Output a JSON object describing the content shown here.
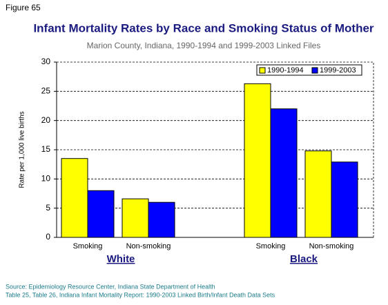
{
  "figure_label": "Figure 65",
  "chart_data": {
    "type": "bar",
    "title": "Infant Mortality Rates by Race and Smoking Status of Mother",
    "subtitle": "Marion County, Indiana, 1990-1994 and 1999-2003 Linked Files",
    "y_label": "Rate per 1,000 live births",
    "categories": [
      "Smoking",
      "Non-smoking",
      "Smoking",
      "Non-smoking"
    ],
    "groups": [
      "White",
      "Black"
    ],
    "series": [
      {
        "name": "1990-1994",
        "color": "#ffff00",
        "values": [
          13.5,
          6.6,
          26.3,
          14.8
        ]
      },
      {
        "name": "1999-2003",
        "color": "#0000ff",
        "values": [
          8.0,
          6.0,
          22.0,
          12.9
        ]
      }
    ],
    "ylim": [
      0,
      30
    ],
    "yticks": [
      0,
      5,
      10,
      15,
      20,
      25,
      30
    ],
    "grid": true,
    "legend": "top-right"
  },
  "source": [
    "Source: Epidemiology Resource Center, Indiana State Department of Health",
    "Table 25, Table 26, Indiana Infant Mortality Report: 1990-2003 Linked Birth/Infant Death Data Sets"
  ]
}
